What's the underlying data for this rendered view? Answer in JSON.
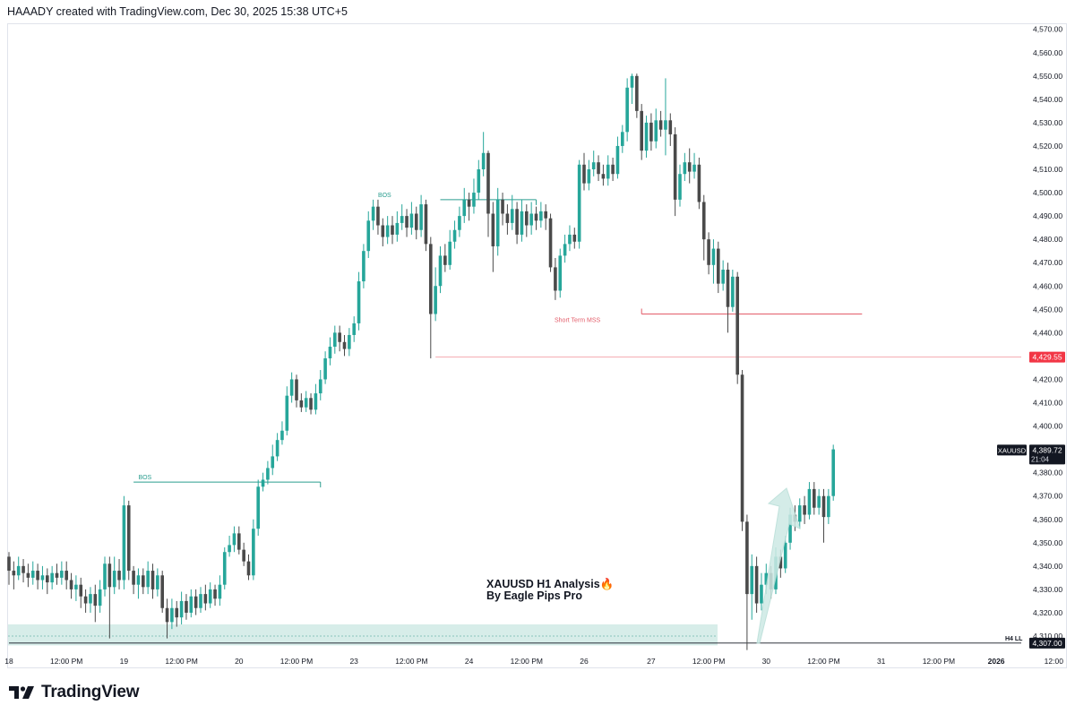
{
  "header": {
    "text": "HAAADY created with TradingView.com, Dec 30, 2025 15:38 UTC+5"
  },
  "brand": {
    "name": "TradingView",
    "icon": "tradingview-logo-icon"
  },
  "annotation": {
    "title": "XAUUSD H1 Analysis",
    "emoji": "🔥",
    "subtitle": "By Eagle Pips Pro"
  },
  "labels": {
    "bos_1": "BOS",
    "bos_2": "BOS",
    "short_term_mss": "Short Term MSS",
    "h4_ll": "H4 LL",
    "symbol": "XAUUSD",
    "last_price": "4,389.72",
    "countdown": "21:04",
    "level_price": "4,429.55",
    "ll_price": "4,307.00"
  },
  "colors": {
    "bull": "#26a69a",
    "bear": "#4a4a4a",
    "accent_line": "#2a9d8f",
    "mss": "#e35d6a",
    "level": "#f23645",
    "zone": "#d7ede9",
    "grid": "#f0f3fa"
  },
  "chart_data": {
    "type": "candlestick",
    "symbol": "XAUUSD",
    "timeframe": "H1",
    "y_ticks": [
      4310,
      4320,
      4330,
      4340,
      4350,
      4360,
      4370,
      4380,
      4390,
      4400,
      4410,
      4420,
      4430,
      4440,
      4450,
      4460,
      4470,
      4480,
      4490,
      4500,
      4510,
      4520,
      4530,
      4540,
      4550,
      4560,
      4570
    ],
    "y_tick_labels": [
      "4,310.00",
      "4,320.00",
      "4,330.00",
      "4,340.00",
      "4,350.00",
      "4,360.00",
      "4,370.00",
      "4,380.00",
      "4,390.00",
      "4,400.00",
      "4,410.00",
      "4,420.00",
      "4,430.00",
      "4,440.00",
      "4,450.00",
      "4,460.00",
      "4,470.00",
      "4,480.00",
      "4,490.00",
      "4,500.00",
      "4,510.00",
      "4,520.00",
      "4,530.00",
      "4,540.00",
      "4,550.00",
      "4,560.00",
      "4,570.00"
    ],
    "x_ticks": [
      {
        "label": "18",
        "bar": 0
      },
      {
        "label": "12:00 PM",
        "bar": 12
      },
      {
        "label": "19",
        "bar": 24
      },
      {
        "label": "12:00 PM",
        "bar": 36
      },
      {
        "label": "20",
        "bar": 48
      },
      {
        "label": "12:00 PM",
        "bar": 60
      },
      {
        "label": "23",
        "bar": 72
      },
      {
        "label": "12:00 PM",
        "bar": 84
      },
      {
        "label": "24",
        "bar": 96
      },
      {
        "label": "12:00 PM",
        "bar": 108
      },
      {
        "label": "26",
        "bar": 120
      },
      {
        "label": "27",
        "bar": 134
      },
      {
        "label": "12:00 PM",
        "bar": 146
      },
      {
        "label": "30",
        "bar": 158
      },
      {
        "label": "12:00 PM",
        "bar": 170
      },
      {
        "label": "31",
        "bar": 182
      },
      {
        "label": "12:00 PM",
        "bar": 194
      },
      {
        "label": "2026",
        "bar": 206
      },
      {
        "label": "12:00",
        "bar": 218
      }
    ],
    "candles": [
      [
        4344,
        4338,
        4346,
        4332
      ],
      [
        4338,
        4336,
        4342,
        4330
      ],
      [
        4336,
        4340,
        4344,
        4334
      ],
      [
        4340,
        4337,
        4343,
        4333
      ],
      [
        4337,
        4335,
        4341,
        4331
      ],
      [
        4335,
        4338,
        4342,
        4332
      ],
      [
        4338,
        4334,
        4341,
        4330
      ],
      [
        4334,
        4336,
        4340,
        4330
      ],
      [
        4336,
        4333,
        4339,
        4328
      ],
      [
        4333,
        4337,
        4340,
        4330
      ],
      [
        4337,
        4335,
        4341,
        4332
      ],
      [
        4335,
        4338,
        4342,
        4332
      ],
      [
        4338,
        4334,
        4342,
        4330
      ],
      [
        4334,
        4330,
        4337,
        4326
      ],
      [
        4330,
        4332,
        4336,
        4325
      ],
      [
        4332,
        4327,
        4335,
        4322
      ],
      [
        4327,
        4324,
        4330,
        4320
      ],
      [
        4324,
        4328,
        4331,
        4320
      ],
      [
        4328,
        4323,
        4332,
        4316
      ],
      [
        4323,
        4330,
        4334,
        4320
      ],
      [
        4330,
        4341,
        4344,
        4327
      ],
      [
        4341,
        4331,
        4344,
        4309
      ],
      [
        4331,
        4338,
        4344,
        4328
      ],
      [
        4338,
        4334,
        4343,
        4330
      ],
      [
        4334,
        4366,
        4370,
        4330
      ],
      [
        4366,
        4338,
        4368,
        4334
      ],
      [
        4338,
        4332,
        4340,
        4328
      ],
      [
        4332,
        4336,
        4339,
        4326
      ],
      [
        4336,
        4331,
        4339,
        4328
      ],
      [
        4331,
        4338,
        4342,
        4328
      ],
      [
        4338,
        4330,
        4341,
        4326
      ],
      [
        4330,
        4336,
        4339,
        4327
      ],
      [
        4336,
        4322,
        4338,
        4320
      ],
      [
        4322,
        4316,
        4326,
        4309
      ],
      [
        4316,
        4322,
        4326,
        4313
      ],
      [
        4322,
        4318,
        4325,
        4314
      ],
      [
        4318,
        4325,
        4329,
        4315
      ],
      [
        4325,
        4320,
        4328,
        4317
      ],
      [
        4320,
        4327,
        4330,
        4318
      ],
      [
        4327,
        4322,
        4330,
        4319
      ],
      [
        4322,
        4328,
        4331,
        4320
      ],
      [
        4328,
        4324,
        4332,
        4321
      ],
      [
        4324,
        4330,
        4333,
        4322
      ],
      [
        4330,
        4326,
        4332,
        4323
      ],
      [
        4326,
        4332,
        4336,
        4323
      ],
      [
        4332,
        4346,
        4348,
        4330
      ],
      [
        4346,
        4349,
        4353,
        4344
      ],
      [
        4349,
        4354,
        4357,
        4346
      ],
      [
        4354,
        4347,
        4357,
        4345
      ],
      [
        4347,
        4342,
        4350,
        4340
      ],
      [
        4342,
        4336,
        4345,
        4334
      ],
      [
        4336,
        4356,
        4360,
        4334
      ],
      [
        4356,
        4374,
        4377,
        4353
      ],
      [
        4374,
        4377,
        4380,
        4372
      ],
      [
        4377,
        4382,
        4385,
        4375
      ],
      [
        4382,
        4387,
        4392,
        4379
      ],
      [
        4387,
        4394,
        4397,
        4385
      ],
      [
        4394,
        4398,
        4402,
        4392
      ],
      [
        4398,
        4413,
        4417,
        4396
      ],
      [
        4413,
        4420,
        4423,
        4410
      ],
      [
        4420,
        4411,
        4422,
        4408
      ],
      [
        4411,
        4408,
        4414,
        4406
      ],
      [
        4408,
        4412,
        4415,
        4406
      ],
      [
        4412,
        4407,
        4414,
        4405
      ],
      [
        4407,
        4414,
        4418,
        4405
      ],
      [
        4414,
        4420,
        4424,
        4411
      ],
      [
        4420,
        4429,
        4432,
        4418
      ],
      [
        4429,
        4434,
        4438,
        4426
      ],
      [
        4434,
        4440,
        4443,
        4431
      ],
      [
        4440,
        4436,
        4443,
        4432
      ],
      [
        4436,
        4433,
        4439,
        4430
      ],
      [
        4433,
        4439,
        4442,
        4430
      ],
      [
        4439,
        4444,
        4447,
        4436
      ],
      [
        4444,
        4462,
        4466,
        4441
      ],
      [
        4462,
        4475,
        4478,
        4459
      ],
      [
        4475,
        4488,
        4492,
        4472
      ],
      [
        4488,
        4494,
        4497,
        4484
      ],
      [
        4494,
        4486,
        4497,
        4482
      ],
      [
        4486,
        4481,
        4489,
        4477
      ],
      [
        4481,
        4486,
        4490,
        4478
      ],
      [
        4486,
        4482,
        4490,
        4478
      ],
      [
        4482,
        4487,
        4492,
        4479
      ],
      [
        4487,
        4490,
        4495,
        4484
      ],
      [
        4490,
        4485,
        4493,
        4481
      ],
      [
        4485,
        4491,
        4496,
        4482
      ],
      [
        4491,
        4484,
        4494,
        4480
      ],
      [
        4484,
        4495,
        4499,
        4481
      ],
      [
        4495,
        4478,
        4497,
        4475
      ],
      [
        4478,
        4448,
        4481,
        4429
      ],
      [
        4448,
        4460,
        4468,
        4445
      ],
      [
        4460,
        4473,
        4477,
        4457
      ],
      [
        4473,
        4469,
        4478,
        4466
      ],
      [
        4469,
        4479,
        4484,
        4467
      ],
      [
        4479,
        4484,
        4488,
        4476
      ],
      [
        4484,
        4490,
        4494,
        4481
      ],
      [
        4490,
        4497,
        4502,
        4487
      ],
      [
        4497,
        4494,
        4500,
        4488
      ],
      [
        4494,
        4500,
        4506,
        4491
      ],
      [
        4500,
        4510,
        4514,
        4497
      ],
      [
        4510,
        4517,
        4526,
        4507
      ],
      [
        4517,
        4491,
        4518,
        4481
      ],
      [
        4491,
        4477,
        4496,
        4466
      ],
      [
        4477,
        4497,
        4502,
        4473
      ],
      [
        4497,
        4491,
        4500,
        4486
      ],
      [
        4491,
        4487,
        4495,
        4482
      ],
      [
        4487,
        4493,
        4499,
        4484
      ],
      [
        4493,
        4482,
        4496,
        4478
      ],
      [
        4482,
        4492,
        4497,
        4479
      ],
      [
        4492,
        4486,
        4495,
        4481
      ],
      [
        4486,
        4491,
        4496,
        4482
      ],
      [
        4491,
        4488,
        4494,
        4484
      ],
      [
        4488,
        4492,
        4496,
        4485
      ],
      [
        4492,
        4489,
        4495,
        4484
      ],
      [
        4489,
        4468,
        4491,
        4466
      ],
      [
        4468,
        4458,
        4472,
        4454
      ],
      [
        4458,
        4473,
        4476,
        4455
      ],
      [
        4473,
        4478,
        4482,
        4470
      ],
      [
        4478,
        4482,
        4486,
        4475
      ],
      [
        4482,
        4479,
        4485,
        4476
      ],
      [
        4479,
        4512,
        4514,
        4476
      ],
      [
        4512,
        4504,
        4517,
        4501
      ],
      [
        4504,
        4510,
        4514,
        4501
      ],
      [
        4510,
        4513,
        4518,
        4507
      ],
      [
        4513,
        4508,
        4516,
        4505
      ],
      [
        4508,
        4506,
        4512,
        4503
      ],
      [
        4506,
        4512,
        4516,
        4503
      ],
      [
        4512,
        4508,
        4515,
        4505
      ],
      [
        4508,
        4520,
        4524,
        4506
      ],
      [
        4520,
        4526,
        4529,
        4517
      ],
      [
        4526,
        4545,
        4549,
        4522
      ],
      [
        4545,
        4550,
        4551,
        4538
      ],
      [
        4550,
        4535,
        4551,
        4532
      ],
      [
        4535,
        4518,
        4538,
        4514
      ],
      [
        4518,
        4530,
        4533,
        4515
      ],
      [
        4530,
        4522,
        4534,
        4518
      ],
      [
        4522,
        4531,
        4536,
        4519
      ],
      [
        4531,
        4527,
        4535,
        4524
      ],
      [
        4527,
        4531,
        4549,
        4516
      ],
      [
        4531,
        4525,
        4534,
        4520
      ],
      [
        4525,
        4497,
        4528,
        4490
      ],
      [
        4497,
        4508,
        4512,
        4494
      ],
      [
        4508,
        4513,
        4517,
        4505
      ],
      [
        4513,
        4509,
        4519,
        4504
      ],
      [
        4509,
        4512,
        4517,
        4506
      ],
      [
        4512,
        4496,
        4515,
        4493
      ],
      [
        4496,
        4480,
        4499,
        4471
      ],
      [
        4480,
        4469,
        4483,
        4465
      ],
      [
        4469,
        4476,
        4480,
        4461
      ],
      [
        4476,
        4461,
        4479,
        4457
      ],
      [
        4461,
        4467,
        4471,
        4458
      ],
      [
        4467,
        4451,
        4470,
        4440
      ],
      [
        4451,
        4464,
        4467,
        4449
      ],
      [
        4464,
        4422,
        4466,
        4418
      ],
      [
        4422,
        4359,
        4424,
        4355
      ],
      [
        4359,
        4328,
        4362,
        4304
      ],
      [
        4328,
        4340,
        4345,
        4317
      ],
      [
        4340,
        4324,
        4344,
        4320
      ],
      [
        4324,
        4332,
        4337,
        4321
      ],
      [
        4332,
        4337,
        4341,
        4328
      ],
      [
        4337,
        4330,
        4340,
        4326
      ],
      [
        4330,
        4344,
        4348,
        4328
      ],
      [
        4344,
        4339,
        4347,
        4335
      ],
      [
        4339,
        4350,
        4353,
        4337
      ],
      [
        4350,
        4362,
        4365,
        4347
      ],
      [
        4362,
        4359,
        4366,
        4355
      ],
      [
        4359,
        4366,
        4369,
        4356
      ],
      [
        4366,
        4362,
        4370,
        4358
      ],
      [
        4362,
        4373,
        4376,
        4360
      ],
      [
        4373,
        4365,
        4376,
        4362
      ],
      [
        4365,
        4370,
        4373,
        4362
      ],
      [
        4370,
        4361,
        4373,
        4350
      ],
      [
        4361,
        4370,
        4373,
        4358
      ],
      [
        4370,
        4390,
        4392,
        4368
      ]
    ],
    "lines": [
      {
        "label": "BOS",
        "price": 4376,
        "from_bar": 26,
        "to_bar": 65
      },
      {
        "label": "BOS",
        "price": 4497,
        "from_bar": 90,
        "to_bar": 110
      },
      {
        "label": "Short Term MSS",
        "price": 4448,
        "from_bar": 132,
        "to_bar": 178
      },
      {
        "label": "4,429.55",
        "price": 4429.55,
        "from_bar": 89,
        "to_bar": 240
      },
      {
        "label": "H4 LL",
        "price": 4307,
        "from_bar": 0,
        "to_bar": 240
      }
    ],
    "zone": {
      "from_price": 4306,
      "to_price": 4315,
      "mid_price": 4310
    },
    "last_price": 4389.72
  }
}
